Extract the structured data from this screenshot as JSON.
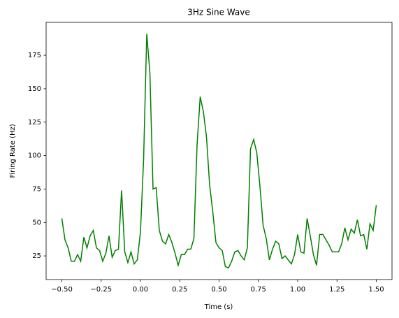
{
  "chart_data": {
    "type": "line",
    "title": "3Hz Sine Wave",
    "x_label": "Time (s)",
    "y_label": "Firing Rate (Hz)",
    "x": [
      -0.5,
      -0.48,
      -0.46,
      -0.44,
      -0.42,
      -0.4,
      -0.38,
      -0.36,
      -0.34,
      -0.32,
      -0.3,
      -0.28,
      -0.26,
      -0.24,
      -0.22,
      -0.2,
      -0.18,
      -0.16,
      -0.14,
      -0.12,
      -0.1,
      -0.08,
      -0.06,
      -0.04,
      -0.02,
      0,
      0.02,
      0.04,
      0.06,
      0.08,
      0.1,
      0.12,
      0.14,
      0.16,
      0.18,
      0.2,
      0.22,
      0.24,
      0.26,
      0.28,
      0.3,
      0.32,
      0.34,
      0.36,
      0.38,
      0.4,
      0.42,
      0.44,
      0.46,
      0.48,
      0.5,
      0.52,
      0.54,
      0.56,
      0.58,
      0.6,
      0.62,
      0.64,
      0.66,
      0.68,
      0.7,
      0.72,
      0.74,
      0.76,
      0.78,
      0.8,
      0.82,
      0.84,
      0.86,
      0.88,
      0.9,
      0.92,
      0.94,
      0.96,
      0.98,
      1,
      1.02,
      1.04,
      1.06,
      1.08,
      1.1,
      1.12,
      1.14,
      1.16,
      1.18,
      1.2,
      1.22,
      1.24,
      1.26,
      1.28,
      1.3,
      1.32,
      1.34,
      1.36,
      1.38,
      1.4,
      1.42,
      1.44,
      1.46,
      1.48,
      1.5
    ],
    "series": [
      {
        "name": "Firing rate",
        "color": "#008000",
        "values": [
          53,
          37,
          31,
          21,
          21,
          26,
          21,
          39,
          31,
          40,
          44,
          31,
          29,
          21,
          27,
          40,
          24,
          29,
          30,
          74,
          28,
          20,
          28,
          19,
          22,
          43,
          97,
          191,
          162,
          75,
          76,
          44,
          36,
          34,
          41,
          35,
          27,
          18,
          26,
          26,
          30,
          30,
          38,
          108,
          144,
          133,
          114,
          78,
          58,
          35,
          31,
          29,
          17,
          16,
          21,
          28,
          29,
          25,
          22,
          31,
          105,
          112,
          102,
          77,
          48,
          38,
          22,
          30,
          36,
          34,
          23,
          25,
          22,
          19,
          26,
          41,
          28,
          27,
          53,
          40,
          26,
          18,
          41,
          41,
          37,
          33,
          28,
          28,
          28,
          34,
          46,
          37,
          45,
          42,
          52,
          40,
          41,
          30,
          49,
          44,
          63
        ]
      }
    ],
    "xlim": [
      -0.6,
      1.6
    ],
    "ylim": [
      7.3,
      199.6
    ],
    "xticks": [
      {
        "value": -0.5,
        "label": "−0.50"
      },
      {
        "value": -0.25,
        "label": "−0.25"
      },
      {
        "value": 0,
        "label": "0.00"
      },
      {
        "value": 0.25,
        "label": "0.25"
      },
      {
        "value": 0.5,
        "label": "0.50"
      },
      {
        "value": 0.75,
        "label": "0.75"
      },
      {
        "value": 1,
        "label": "1.00"
      },
      {
        "value": 1.25,
        "label": "1.25"
      },
      {
        "value": 1.5,
        "label": "1.50"
      }
    ],
    "yticks": [
      25,
      50,
      75,
      100,
      125,
      150,
      175
    ]
  }
}
